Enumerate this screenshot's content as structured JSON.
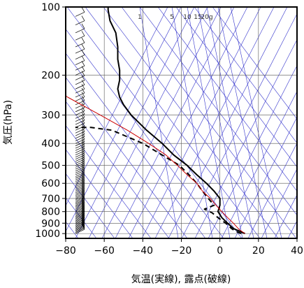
{
  "chart_data": {
    "type": "line",
    "title": "",
    "xlabel": "気温(実線), 露点(破線)",
    "ylabel": "気圧(hPa)",
    "xlim": [
      -80,
      40
    ],
    "ylim": [
      1050,
      100
    ],
    "y_scale": "log",
    "x_ticks": [
      -80,
      -60,
      -40,
      -20,
      0,
      20,
      40
    ],
    "x_tick_labels": [
      "−80",
      "−60",
      "−40",
      "−20",
      "0",
      "20",
      "40"
    ],
    "y_ticks": [
      100,
      200,
      300,
      400,
      500,
      600,
      700,
      800,
      900,
      1000
    ],
    "y_tick_labels": [
      "100",
      "200",
      "300",
      "400",
      "500",
      "600",
      "700",
      "800",
      "900",
      "1000"
    ],
    "mixing_ratio_labels": [
      "1",
      "5",
      "10",
      "15",
      "20g"
    ],
    "colors": {
      "temperature": "#000000",
      "dewpoint": "#000000",
      "isotherm_dry_adiabat": "#3333cc",
      "parcel": "#cc0000",
      "grid": "#555555"
    },
    "series": [
      {
        "name": "気温",
        "style": "solid",
        "points": [
          [
            13,
            1000
          ],
          [
            10,
            975
          ],
          [
            7,
            950
          ],
          [
            4,
            900
          ],
          [
            1,
            850
          ],
          [
            -1,
            800
          ],
          [
            0,
            750
          ],
          [
            0,
            700
          ],
          [
            -3,
            650
          ],
          [
            -7,
            600
          ],
          [
            -12,
            550
          ],
          [
            -17,
            500
          ],
          [
            -24,
            450
          ],
          [
            -30,
            400
          ],
          [
            -38,
            350
          ],
          [
            -46,
            300
          ],
          [
            -50,
            270
          ],
          [
            -52,
            250
          ],
          [
            -53,
            230
          ],
          [
            -52,
            210
          ],
          [
            -52,
            190
          ],
          [
            -53,
            170
          ],
          [
            -53,
            150
          ],
          [
            -54,
            130
          ],
          [
            -57,
            115
          ],
          [
            -58,
            103
          ],
          [
            -58,
            100
          ]
        ]
      },
      {
        "name": "露点",
        "style": "dashed",
        "points": [
          [
            11,
            1000
          ],
          [
            8,
            975
          ],
          [
            6,
            950
          ],
          [
            3,
            900
          ],
          [
            -1,
            850
          ],
          [
            -4,
            810
          ],
          [
            -8,
            780
          ],
          [
            -3,
            750
          ],
          [
            -6,
            700
          ],
          [
            -9,
            650
          ],
          [
            -12,
            600
          ],
          [
            -16,
            550
          ],
          [
            -21,
            500
          ],
          [
            -30,
            450
          ],
          [
            -40,
            400
          ],
          [
            -56,
            350
          ],
          [
            -67,
            340
          ],
          [
            -75,
            340
          ]
        ]
      },
      {
        "name": "parcel",
        "style": "solid",
        "points": [
          [
            13,
            1000
          ],
          [
            10,
            960
          ],
          [
            7,
            900
          ],
          [
            4,
            850
          ],
          [
            1,
            800
          ],
          [
            -2,
            750
          ],
          [
            -5,
            700
          ],
          [
            -9,
            650
          ],
          [
            -12,
            600
          ],
          [
            -17,
            550
          ],
          [
            -22,
            500
          ],
          [
            -28,
            450
          ],
          [
            -37,
            400
          ],
          [
            -48,
            350
          ],
          [
            -62,
            300
          ],
          [
            -79,
            250
          ],
          [
            -82,
            240
          ]
        ]
      }
    ],
    "wind_barbs": "left side, every ~10 hPa from 1000 to 100"
  }
}
